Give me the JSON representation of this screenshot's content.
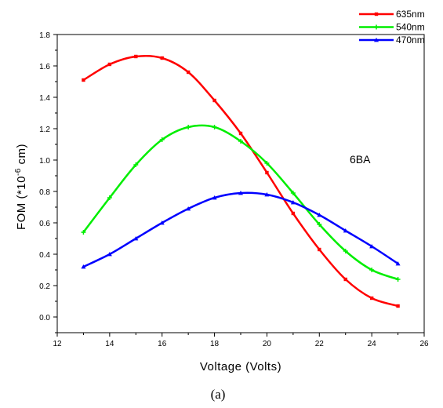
{
  "chart_data": {
    "type": "line",
    "xlabel": "Voltage (Volts)",
    "ylabel_main": "FOM (*10",
    "ylabel_exp": "-6",
    "ylabel_unit": " cm)",
    "annotation": "6BA",
    "caption": "(a)",
    "xlim": [
      12,
      26
    ],
    "ylim": [
      -0.1,
      1.8
    ],
    "xticks": [
      12,
      14,
      16,
      18,
      20,
      22,
      24,
      26
    ],
    "yticks": [
      0.0,
      0.2,
      0.4,
      0.6,
      0.8,
      1.0,
      1.2,
      1.4,
      1.6,
      1.8
    ],
    "ytick_labels": [
      "0.0",
      "0.2",
      "0.4",
      "0.6",
      "0.8",
      "1.0",
      "1.2",
      "1.4",
      "1.6",
      "1.8"
    ],
    "legend_position": "top-right",
    "series": [
      {
        "name": "635nm",
        "color": "#ff0000",
        "marker": "square",
        "x": [
          13,
          14,
          15,
          16,
          17,
          18,
          19,
          20,
          21,
          22,
          23,
          24,
          25
        ],
        "y": [
          1.51,
          1.61,
          1.66,
          1.65,
          1.56,
          1.38,
          1.17,
          0.92,
          0.66,
          0.43,
          0.24,
          0.12,
          0.07
        ],
        "marker_x": [
          13,
          14,
          15,
          16,
          17,
          18,
          19,
          20,
          21,
          22,
          23,
          24,
          25
        ]
      },
      {
        "name": "540nm",
        "color": "#00ee00",
        "marker": "plus",
        "x": [
          13,
          14,
          15,
          16,
          17,
          18,
          19,
          20,
          21,
          22,
          23,
          24,
          25
        ],
        "y": [
          0.54,
          0.76,
          0.97,
          1.13,
          1.21,
          1.21,
          1.12,
          0.98,
          0.79,
          0.59,
          0.42,
          0.3,
          0.24
        ],
        "marker_x": [
          13,
          14,
          15,
          16,
          17,
          18,
          19,
          20,
          21,
          22,
          23,
          24,
          25
        ]
      },
      {
        "name": "470nm",
        "color": "#0000ff",
        "marker": "triangle",
        "x": [
          13,
          14,
          15,
          16,
          17,
          18,
          19,
          20,
          21,
          22,
          23,
          24,
          25
        ],
        "y": [
          0.32,
          0.4,
          0.5,
          0.6,
          0.69,
          0.76,
          0.79,
          0.78,
          0.73,
          0.65,
          0.55,
          0.45,
          0.34
        ],
        "marker_x": [
          13,
          14,
          15,
          16,
          17,
          18,
          19,
          20,
          21,
          22,
          23,
          24,
          25
        ]
      }
    ]
  }
}
